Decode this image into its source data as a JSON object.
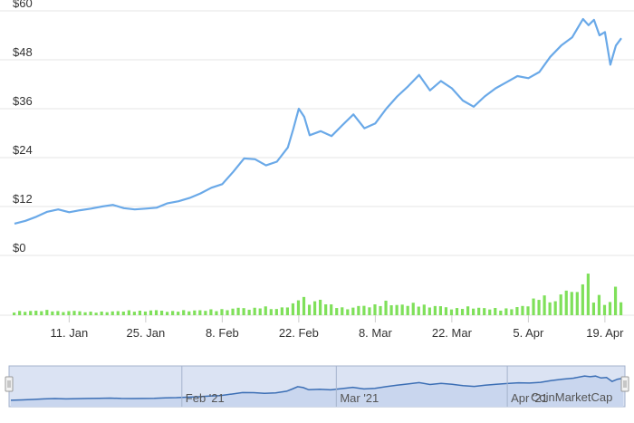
{
  "chart_data": {
    "type": "line",
    "title": "",
    "xlabel": "",
    "ylabel": "",
    "ylim": [
      0,
      60
    ],
    "y_ticks": [
      "$0",
      "$12",
      "$24",
      "$36",
      "$48",
      "$60"
    ],
    "x_ticks": [
      "11. Jan",
      "25. Jan",
      "8. Feb",
      "22. Feb",
      "8. Mar",
      "22. Mar",
      "5. Apr",
      "19. Apr"
    ],
    "grid": true,
    "legend": "none",
    "price_series": {
      "x": [
        "2021-01-01",
        "2021-01-03",
        "2021-01-05",
        "2021-01-07",
        "2021-01-09",
        "2021-01-11",
        "2021-01-13",
        "2021-01-15",
        "2021-01-17",
        "2021-01-19",
        "2021-01-21",
        "2021-01-23",
        "2021-01-25",
        "2021-01-27",
        "2021-01-29",
        "2021-01-31",
        "2021-02-02",
        "2021-02-04",
        "2021-02-06",
        "2021-02-08",
        "2021-02-10",
        "2021-02-12",
        "2021-02-14",
        "2021-02-16",
        "2021-02-18",
        "2021-02-20",
        "2021-02-21",
        "2021-02-22",
        "2021-02-23",
        "2021-02-24",
        "2021-02-26",
        "2021-02-28",
        "2021-03-02",
        "2021-03-04",
        "2021-03-06",
        "2021-03-08",
        "2021-03-10",
        "2021-03-12",
        "2021-03-14",
        "2021-03-16",
        "2021-03-18",
        "2021-03-20",
        "2021-03-22",
        "2021-03-24",
        "2021-03-26",
        "2021-03-28",
        "2021-03-30",
        "2021-04-01",
        "2021-04-03",
        "2021-04-05",
        "2021-04-07",
        "2021-04-09",
        "2021-04-11",
        "2021-04-13",
        "2021-04-15",
        "2021-04-16",
        "2021-04-17",
        "2021-04-18",
        "2021-04-19",
        "2021-04-20",
        "2021-04-21",
        "2021-04-22"
      ],
      "values": [
        5.8,
        6.5,
        7.5,
        8.7,
        9.3,
        8.6,
        9.1,
        9.5,
        10.0,
        10.4,
        9.6,
        9.3,
        9.5,
        9.7,
        10.8,
        11.3,
        12.1,
        13.2,
        14.6,
        15.5,
        18.5,
        21.8,
        21.6,
        20.1,
        21.0,
        24.5,
        29.0,
        34.0,
        32.0,
        27.5,
        28.5,
        27.3,
        30.0,
        32.6,
        29.2,
        30.4,
        34.0,
        37.0,
        39.5,
        42.3,
        38.5,
        40.8,
        39.0,
        36.0,
        34.5,
        37.0,
        39.0,
        40.5,
        42.0,
        41.5,
        43.0,
        46.7,
        49.5,
        51.5,
        56.0,
        54.5,
        55.8,
        52.0,
        52.8,
        44.8,
        49.5,
        51.3
      ]
    },
    "volume_series": {
      "x": [
        "2021-01-01",
        "2021-01-09",
        "2021-01-17",
        "2021-01-25",
        "2021-02-02",
        "2021-02-10",
        "2021-02-14",
        "2021-02-18",
        "2021-02-21",
        "2021-02-22",
        "2021-02-24",
        "2021-02-26",
        "2021-02-28",
        "2021-03-04",
        "2021-03-10",
        "2021-03-12",
        "2021-03-16",
        "2021-03-20",
        "2021-03-26",
        "2021-04-01",
        "2021-04-05",
        "2021-04-08",
        "2021-04-10",
        "2021-04-12",
        "2021-04-13",
        "2021-04-14",
        "2021-04-15",
        "2021-04-16",
        "2021-04-17",
        "2021-04-18",
        "2021-04-19",
        "2021-04-20",
        "2021-04-21",
        "2021-04-22"
      ],
      "values": [
        1.2,
        1.4,
        1.0,
        1.5,
        1.3,
        2.0,
        2.6,
        1.8,
        3.5,
        6.5,
        3.8,
        4.5,
        2.8,
        2.4,
        3.9,
        3.0,
        3.5,
        2.6,
        2.2,
        2.0,
        2.9,
        6.8,
        4.5,
        7.5,
        9.0,
        7.0,
        13.0,
        11.5,
        4.5,
        6.0,
        3.0,
        4.5,
        7.5,
        5.0
      ],
      "max": 14
    },
    "navigator": {
      "labels": [
        "Feb '21",
        "Mar '21",
        "Apr '21"
      ]
    },
    "watermark": "CoinMarketCap",
    "colors": {
      "line": "#6aa9e8",
      "volume": "#7fe05a",
      "grid": "#e6e6e6",
      "navigator_fill": "#dbe3f3",
      "navigator_line": "#3c6fb5",
      "navigator_border": "#a5b3cc"
    }
  }
}
